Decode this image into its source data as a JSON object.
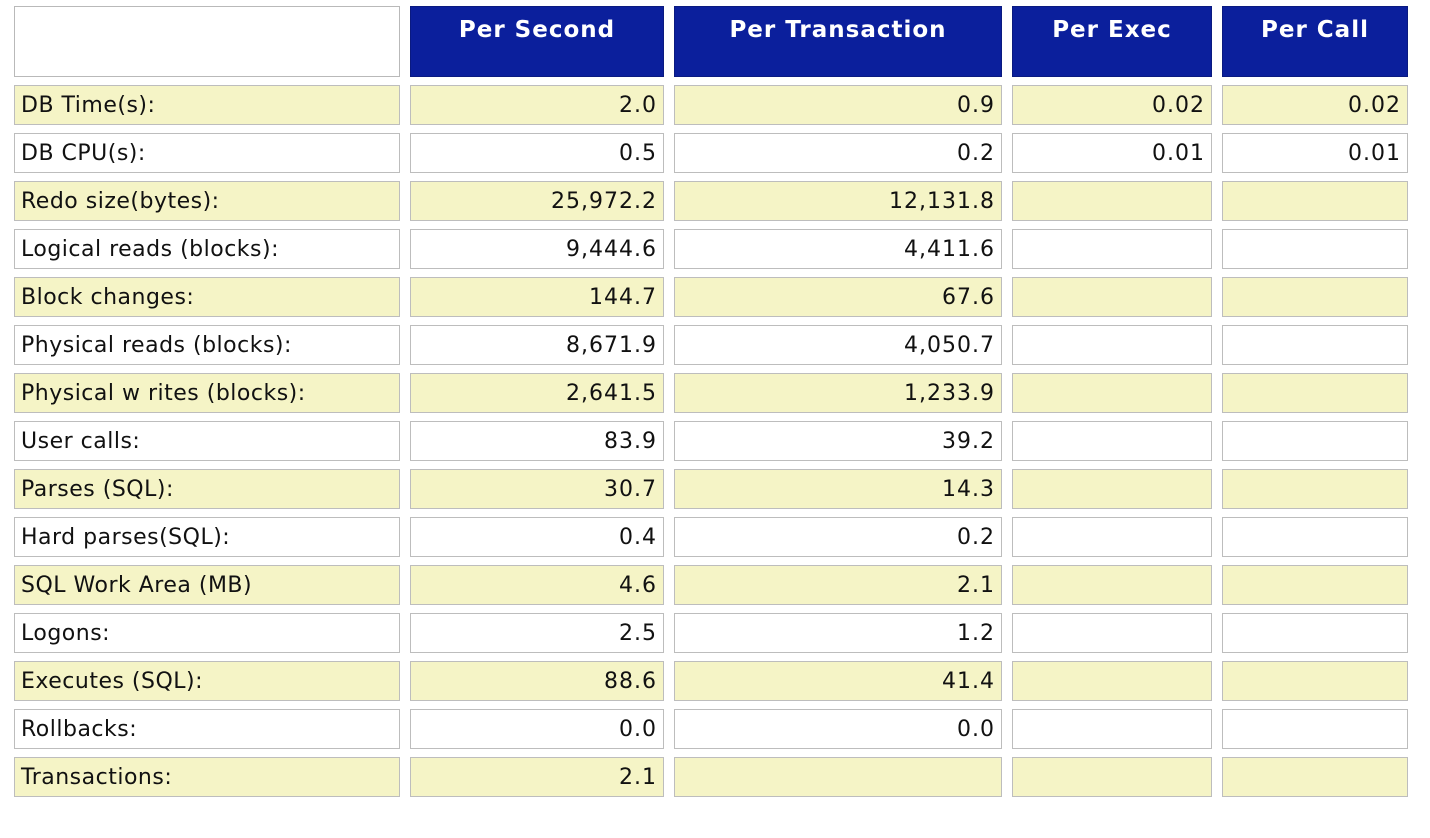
{
  "headers": [
    "Per Second",
    "Per Transaction",
    "Per Exec",
    "Per Call"
  ],
  "rows": [
    {
      "label": "DB Time(s):",
      "per_second": "2.0",
      "per_transaction": "0.9",
      "per_exec": "0.02",
      "per_call": "0.02"
    },
    {
      "label": "DB CPU(s):",
      "per_second": "0.5",
      "per_transaction": "0.2",
      "per_exec": "0.01",
      "per_call": "0.01"
    },
    {
      "label": "Redo size(bytes):",
      "per_second": "25,972.2",
      "per_transaction": "12,131.8",
      "per_exec": "",
      "per_call": ""
    },
    {
      "label": "Logical reads (blocks):",
      "per_second": "9,444.6",
      "per_transaction": "4,411.6",
      "per_exec": "",
      "per_call": ""
    },
    {
      "label": "Block changes:",
      "per_second": "144.7",
      "per_transaction": "67.6",
      "per_exec": "",
      "per_call": ""
    },
    {
      "label": "Physical reads (blocks):",
      "per_second": "8,671.9",
      "per_transaction": "4,050.7",
      "per_exec": "",
      "per_call": ""
    },
    {
      "label": "Physical w rites (blocks):",
      "per_second": "2,641.5",
      "per_transaction": "1,233.9",
      "per_exec": "",
      "per_call": ""
    },
    {
      "label": "User calls:",
      "per_second": "83.9",
      "per_transaction": "39.2",
      "per_exec": "",
      "per_call": ""
    },
    {
      "label": "Parses (SQL):",
      "per_second": "30.7",
      "per_transaction": "14.3",
      "per_exec": "",
      "per_call": ""
    },
    {
      "label": "Hard parses(SQL):",
      "per_second": "0.4",
      "per_transaction": "0.2",
      "per_exec": "",
      "per_call": ""
    },
    {
      "label": "SQL Work Area (MB)",
      "per_second": "4.6",
      "per_transaction": "2.1",
      "per_exec": "",
      "per_call": ""
    },
    {
      "label": "Logons:",
      "per_second": "2.5",
      "per_transaction": "1.2",
      "per_exec": "",
      "per_call": ""
    },
    {
      "label": "Executes (SQL):",
      "per_second": "88.6",
      "per_transaction": "41.4",
      "per_exec": "",
      "per_call": ""
    },
    {
      "label": "Rollbacks:",
      "per_second": "0.0",
      "per_transaction": "0.0",
      "per_exec": "",
      "per_call": ""
    },
    {
      "label": "Transactions:",
      "per_second": "2.1",
      "per_transaction": "",
      "per_exec": "",
      "per_call": ""
    }
  ],
  "colors": {
    "header_bg": "#0b1f9c",
    "header_text": "#ffffff",
    "row_highlight": "#f5f4c6",
    "row_plain": "#ffffff"
  }
}
